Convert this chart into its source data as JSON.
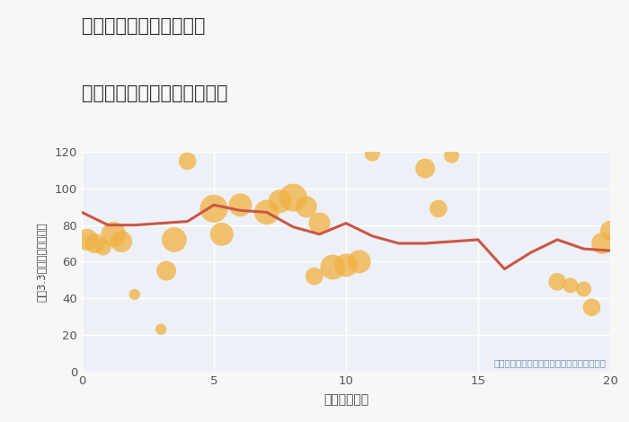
{
  "title_line1": "三重県津市白山町佐田の",
  "title_line2": "駅距離別中古マンション価格",
  "xlabel": "駅距離（分）",
  "ylabel": "坪（3.3㎡）単価（万円）",
  "fig_bg_color": "#f7f7f7",
  "plot_bg_color": "#edf1f7",
  "line_color": "#cc5544",
  "scatter_color": "#f0b040",
  "scatter_alpha": 0.75,
  "annotation": "円の大きさは、取引のあった物件面積を示す",
  "annotation_color": "#7090b0",
  "xlim": [
    0,
    20
  ],
  "ylim": [
    0,
    120
  ],
  "yticks": [
    0,
    20,
    40,
    60,
    80,
    100,
    120
  ],
  "xticks": [
    0,
    5,
    10,
    15,
    20
  ],
  "line_x": [
    0,
    1,
    2,
    3,
    4,
    5,
    6,
    7,
    8,
    9,
    10,
    11,
    12,
    13,
    14,
    15,
    16,
    17,
    18,
    19,
    20
  ],
  "line_y": [
    87,
    80,
    80,
    81,
    82,
    91,
    88,
    87,
    79,
    75,
    81,
    74,
    70,
    70,
    71,
    72,
    56,
    65,
    72,
    67,
    66
  ],
  "scatter_x": [
    0.2,
    0.5,
    0.8,
    1.2,
    1.5,
    2.0,
    3.0,
    3.2,
    3.5,
    4.0,
    5.0,
    5.3,
    6.0,
    7.0,
    7.5,
    8.0,
    8.5,
    8.8,
    9.0,
    9.5,
    10.0,
    10.5,
    11.0,
    13.0,
    13.5,
    14.0,
    18.0,
    18.5,
    19.0,
    19.3,
    19.7,
    20.0
  ],
  "scatter_y": [
    72,
    70,
    68,
    75,
    71,
    42,
    23,
    55,
    72,
    115,
    89,
    75,
    91,
    87,
    93,
    95,
    90,
    52,
    81,
    57,
    58,
    60,
    119,
    111,
    89,
    118,
    49,
    47,
    45,
    35,
    70,
    77
  ],
  "scatter_size": [
    300,
    250,
    180,
    400,
    300,
    80,
    80,
    250,
    400,
    200,
    500,
    350,
    350,
    400,
    350,
    500,
    300,
    200,
    300,
    400,
    350,
    350,
    150,
    250,
    200,
    150,
    200,
    150,
    150,
    200,
    300,
    250
  ]
}
